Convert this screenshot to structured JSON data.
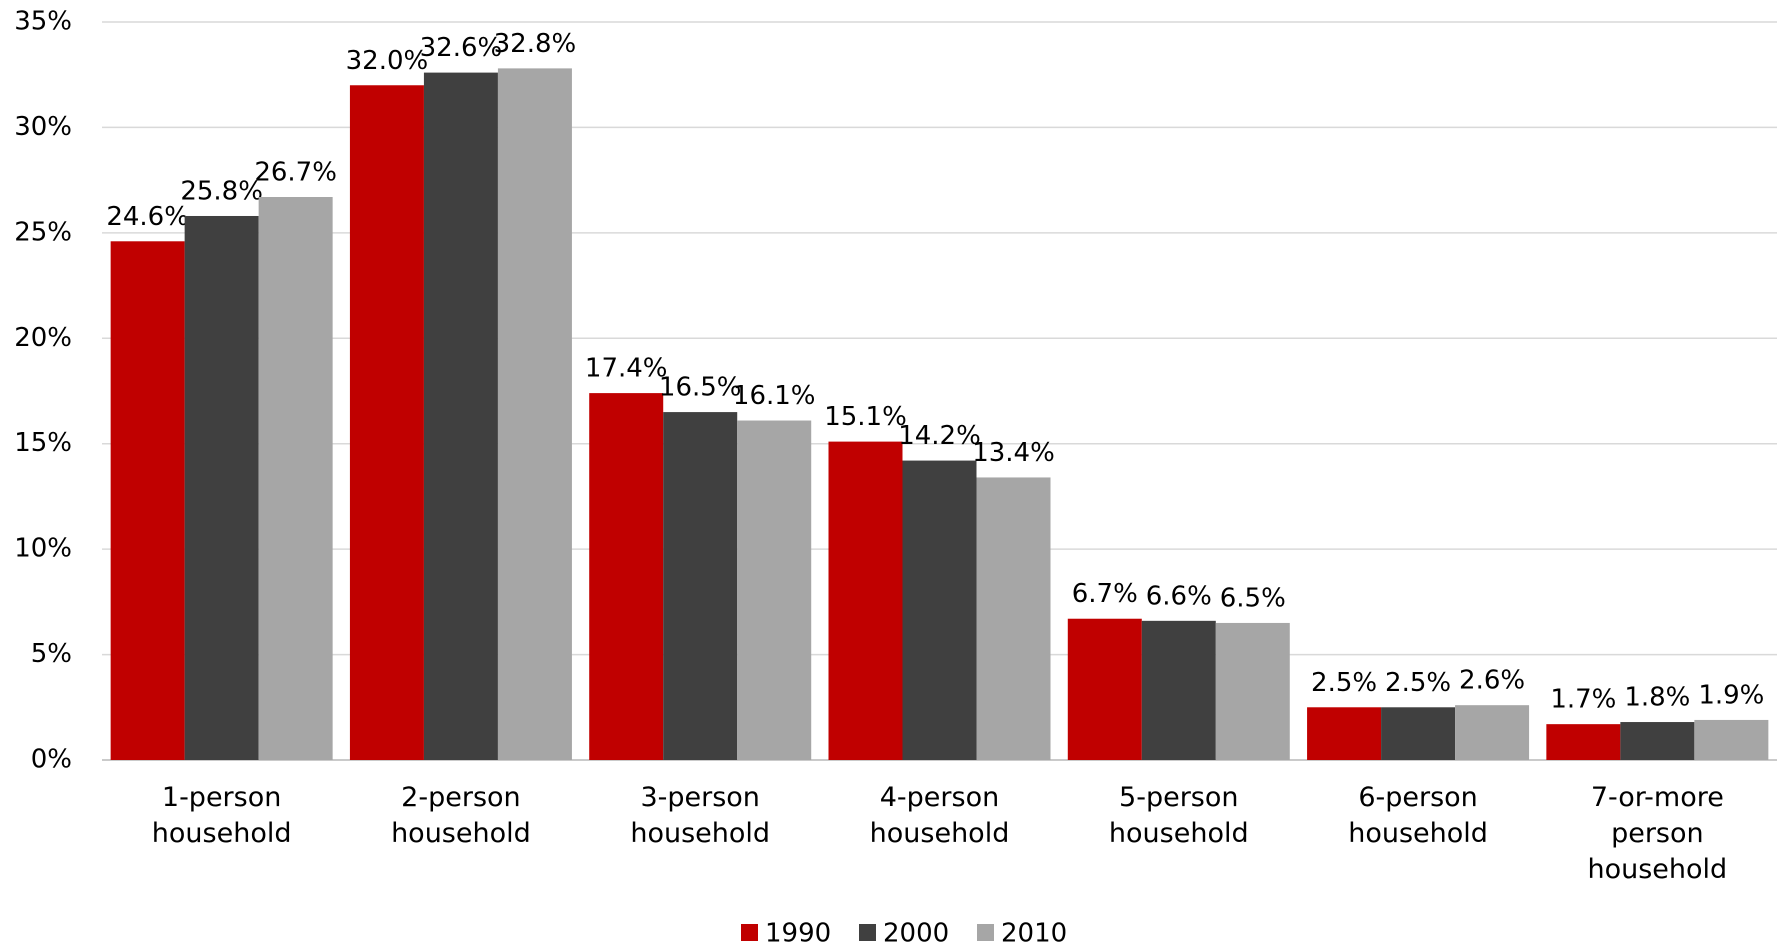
{
  "chart_data": {
    "type": "bar",
    "categories": [
      "1-person household",
      "2-person household",
      "3-person household",
      "4-person household",
      "5-person household",
      "6-person household",
      "7-or-more person household"
    ],
    "series": [
      {
        "name": "1990",
        "color": "#c00000",
        "values": [
          24.6,
          32.0,
          17.4,
          15.1,
          6.7,
          2.5,
          1.7
        ],
        "value_labels": [
          "24.6%",
          "32.0%",
          "17.4%",
          "15.1%",
          "6.7%",
          "2.5%",
          "1.7%"
        ]
      },
      {
        "name": "2000",
        "color": "#404040",
        "values": [
          25.8,
          32.6,
          16.5,
          14.2,
          6.6,
          2.5,
          1.8
        ],
        "value_labels": [
          "25.8%",
          "32.6%",
          "16.5%",
          "14.2%",
          "6.6%",
          "2.5%",
          "1.8%"
        ]
      },
      {
        "name": "2010",
        "color": "#a6a6a6",
        "values": [
          26.7,
          32.8,
          16.1,
          13.4,
          6.5,
          2.6,
          1.9
        ],
        "value_labels": [
          "26.7%",
          "32.8%",
          "16.1%",
          "13.4%",
          "6.5%",
          "2.6%",
          "1.9%"
        ]
      }
    ],
    "ylim": [
      0,
      35
    ],
    "yticks": [
      {
        "value": 0,
        "label": "0%"
      },
      {
        "value": 5,
        "label": "5%"
      },
      {
        "value": 10,
        "label": "10%"
      },
      {
        "value": 15,
        "label": "15%"
      },
      {
        "value": 20,
        "label": "20%"
      },
      {
        "value": 25,
        "label": "25%"
      },
      {
        "value": 30,
        "label": "30%"
      },
      {
        "value": 35,
        "label": "35%"
      }
    ],
    "grid": true,
    "legend": "bottom"
  }
}
